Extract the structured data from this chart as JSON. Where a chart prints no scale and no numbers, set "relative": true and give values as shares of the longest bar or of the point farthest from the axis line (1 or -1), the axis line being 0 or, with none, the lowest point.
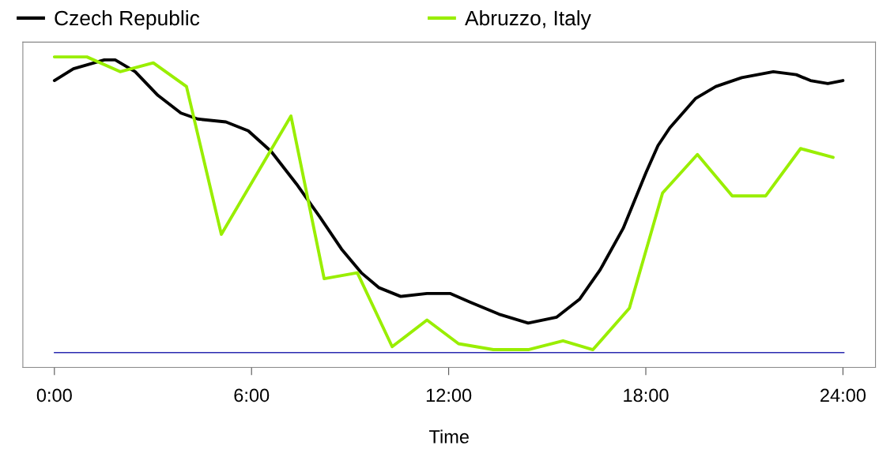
{
  "chart_data": {
    "type": "line",
    "xlabel": "Time",
    "relative": true,
    "legend": "top",
    "grid": false,
    "tick_labels": "x",
    "marker": "none",
    "line_style": "solid",
    "xlim": [
      -0.96,
      24.99
    ],
    "xticks": [
      {
        "value": 0,
        "label": "0:00"
      },
      {
        "value": 6,
        "label": "6:00"
      },
      {
        "value": 12,
        "label": "12:00"
      },
      {
        "value": 18,
        "label": "18:00"
      },
      {
        "value": 24,
        "label": "24:00"
      }
    ],
    "ref_lines": [
      {
        "axis": "y",
        "value": 0,
        "label": null,
        "color": "#2a2ab0"
      }
    ],
    "series": [
      {
        "name": "Czech Republic",
        "color": "#000000",
        "x": [
          0,
          0.58,
          1.52,
          1.85,
          2.46,
          3.15,
          3.85,
          4.36,
          5.22,
          5.9,
          6.6,
          7.37,
          8.07,
          8.74,
          9.34,
          9.87,
          10.54,
          11.34,
          12.04,
          12.66,
          13.53,
          14.42,
          15.29,
          15.98,
          16.61,
          17.31,
          18.01,
          18.37,
          18.73,
          19.52,
          20.13,
          20.92,
          21.88,
          22.58,
          23.01,
          23.54,
          24.0
        ],
        "values": [
          0.92,
          0.96,
          0.99,
          0.99,
          0.95,
          0.87,
          0.81,
          0.79,
          0.78,
          0.75,
          0.68,
          0.57,
          0.46,
          0.35,
          0.27,
          0.22,
          0.19,
          0.2,
          0.2,
          0.17,
          0.13,
          0.1,
          0.12,
          0.18,
          0.28,
          0.42,
          0.61,
          0.7,
          0.76,
          0.86,
          0.9,
          0.93,
          0.95,
          0.94,
          0.92,
          0.91,
          0.92
        ]
      },
      {
        "name": "Abruzzo, Italy",
        "color": "#99ee00",
        "x": [
          0,
          0.99,
          2.0,
          3.01,
          4.02,
          5.08,
          7.2,
          8.21,
          9.22,
          10.28,
          11.34,
          12.3,
          13.36,
          14.42,
          15.48,
          16.39,
          17.5,
          18.51,
          19.57,
          20.63,
          21.65,
          22.71,
          23.7
        ],
        "values": [
          1.0,
          1.0,
          0.95,
          0.98,
          0.9,
          0.4,
          0.8,
          0.25,
          0.27,
          0.02,
          0.11,
          0.03,
          0.01,
          0.01,
          0.04,
          0.01,
          0.15,
          0.54,
          0.67,
          0.53,
          0.53,
          0.69,
          0.66
        ]
      }
    ]
  }
}
